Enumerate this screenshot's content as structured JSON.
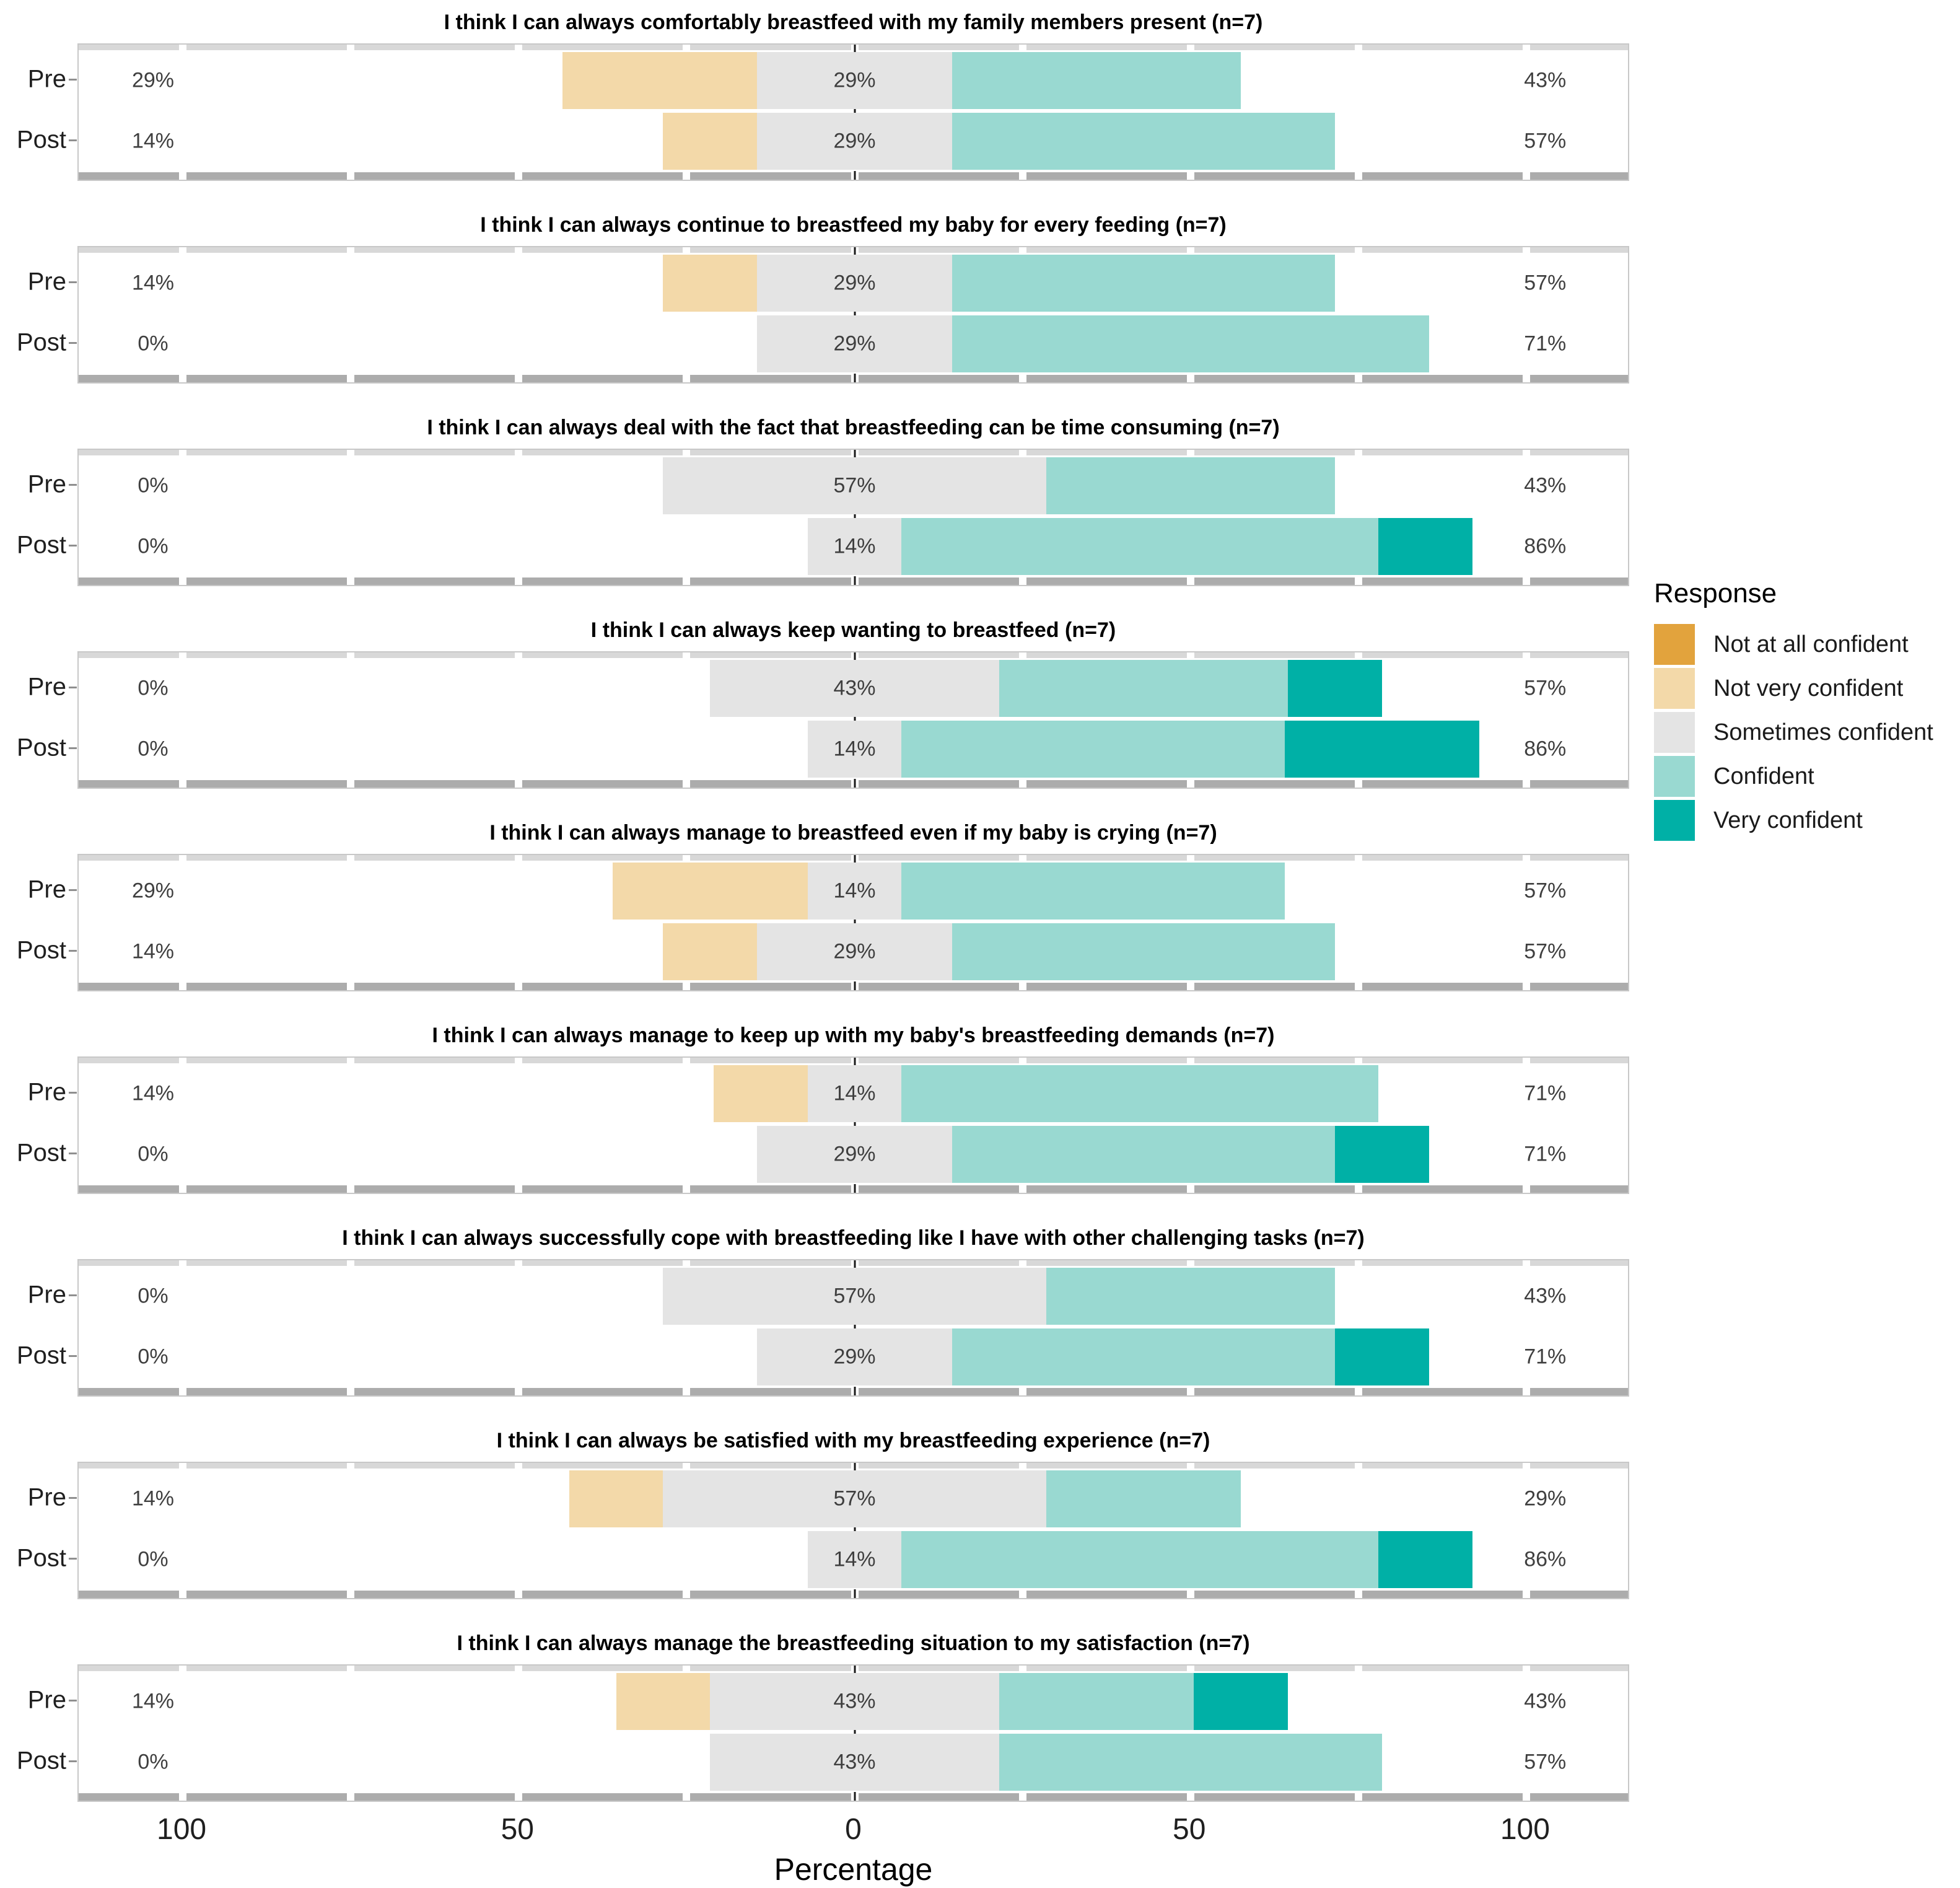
{
  "chart_data": {
    "type": "bar",
    "subtype": "diverging-stacked-likert",
    "xlabel": "Percentage",
    "x_ticks": [
      {
        "label": "100",
        "value": -100
      },
      {
        "label": "50",
        "value": -50
      },
      {
        "label": "0",
        "value": 0
      },
      {
        "label": "50",
        "value": 50
      },
      {
        "label": "100",
        "value": 100
      }
    ],
    "axis_range": [
      -115.5,
      115.5
    ],
    "grid_step": 25,
    "categories": [
      "Pre",
      "Post"
    ],
    "legend": {
      "title": "Response",
      "position": "right",
      "items": [
        {
          "id": "not_at_all",
          "label": "Not at all confident",
          "color": "#e2a33d"
        },
        {
          "id": "not_very",
          "label": "Not very confident",
          "color": "#f3d9a9"
        },
        {
          "id": "sometimes",
          "label": "Sometimes confident",
          "color": "#e4e4e4"
        },
        {
          "id": "confident",
          "label": "Confident",
          "color": "#99d9d1"
        },
        {
          "id": "very",
          "label": "Very confident",
          "color": "#00b0a6"
        }
      ]
    },
    "panels": [
      {
        "title": "I think I can always comfortably breastfeed with my family members present (n=7)",
        "rows": [
          {
            "label": "Pre",
            "values": {
              "not_at_all": 0,
              "not_very": 29,
              "sometimes": 29,
              "confident": 43,
              "very": 0
            },
            "labels": {
              "left": "29%",
              "center": "29%",
              "right": "43%"
            }
          },
          {
            "label": "Post",
            "values": {
              "not_at_all": 0,
              "not_very": 14,
              "sometimes": 29,
              "confident": 57,
              "very": 0
            },
            "labels": {
              "left": "14%",
              "center": "29%",
              "right": "57%"
            }
          }
        ]
      },
      {
        "title": "I think I can always continue to breastfeed my baby for every feeding (n=7)",
        "rows": [
          {
            "label": "Pre",
            "values": {
              "not_at_all": 0,
              "not_very": 14,
              "sometimes": 29,
              "confident": 57,
              "very": 0
            },
            "labels": {
              "left": "14%",
              "center": "29%",
              "right": "57%"
            }
          },
          {
            "label": "Post",
            "values": {
              "not_at_all": 0,
              "not_very": 0,
              "sometimes": 29,
              "confident": 71,
              "very": 0
            },
            "labels": {
              "left": "0%",
              "center": "29%",
              "right": "71%"
            }
          }
        ]
      },
      {
        "title": "I think I can always deal with the fact that breastfeeding can be time consuming (n=7)",
        "rows": [
          {
            "label": "Pre",
            "values": {
              "not_at_all": 0,
              "not_very": 0,
              "sometimes": 57,
              "confident": 43,
              "very": 0
            },
            "labels": {
              "left": "0%",
              "center": "57%",
              "right": "43%"
            }
          },
          {
            "label": "Post",
            "values": {
              "not_at_all": 0,
              "not_very": 0,
              "sometimes": 14,
              "confident": 71,
              "very": 14
            },
            "labels": {
              "left": "0%",
              "center": "14%",
              "right": "86%"
            }
          }
        ]
      },
      {
        "title": "I think I can always keep wanting to breastfeed (n=7)",
        "rows": [
          {
            "label": "Pre",
            "values": {
              "not_at_all": 0,
              "not_very": 0,
              "sometimes": 43,
              "confident": 43,
              "very": 14
            },
            "labels": {
              "left": "0%",
              "center": "43%",
              "right": "57%"
            }
          },
          {
            "label": "Post",
            "values": {
              "not_at_all": 0,
              "not_very": 0,
              "sometimes": 14,
              "confident": 57,
              "very": 29
            },
            "labels": {
              "left": "0%",
              "center": "14%",
              "right": "86%"
            }
          }
        ]
      },
      {
        "title": "I think I can always manage to breastfeed even if my baby is crying (n=7)",
        "rows": [
          {
            "label": "Pre",
            "values": {
              "not_at_all": 0,
              "not_very": 29,
              "sometimes": 14,
              "confident": 57,
              "very": 0
            },
            "labels": {
              "left": "29%",
              "center": "14%",
              "right": "57%"
            }
          },
          {
            "label": "Post",
            "values": {
              "not_at_all": 0,
              "not_very": 14,
              "sometimes": 29,
              "confident": 57,
              "very": 0
            },
            "labels": {
              "left": "14%",
              "center": "29%",
              "right": "57%"
            }
          }
        ]
      },
      {
        "title": "I think I can always manage to keep up with my baby's breastfeeding demands (n=7)",
        "rows": [
          {
            "label": "Pre",
            "values": {
              "not_at_all": 0,
              "not_very": 14,
              "sometimes": 14,
              "confident": 71,
              "very": 0
            },
            "labels": {
              "left": "14%",
              "center": "14%",
              "right": "71%"
            }
          },
          {
            "label": "Post",
            "values": {
              "not_at_all": 0,
              "not_very": 0,
              "sometimes": 29,
              "confident": 57,
              "very": 14
            },
            "labels": {
              "left": "0%",
              "center": "29%",
              "right": "71%"
            }
          }
        ]
      },
      {
        "title": "I think I can always successfully cope with breastfeeding like I have with other challenging tasks (n=7)",
        "rows": [
          {
            "label": "Pre",
            "values": {
              "not_at_all": 0,
              "not_very": 0,
              "sometimes": 57,
              "confident": 43,
              "very": 0
            },
            "labels": {
              "left": "0%",
              "center": "57%",
              "right": "43%"
            }
          },
          {
            "label": "Post",
            "values": {
              "not_at_all": 0,
              "not_very": 0,
              "sometimes": 29,
              "confident": 57,
              "very": 14
            },
            "labels": {
              "left": "0%",
              "center": "29%",
              "right": "71%"
            }
          }
        ]
      },
      {
        "title": "I think I can always be satisfied with my breastfeeding experience (n=7)",
        "rows": [
          {
            "label": "Pre",
            "values": {
              "not_at_all": 0,
              "not_very": 14,
              "sometimes": 57,
              "confident": 29,
              "very": 0
            },
            "labels": {
              "left": "14%",
              "center": "57%",
              "right": "29%"
            }
          },
          {
            "label": "Post",
            "values": {
              "not_at_all": 0,
              "not_very": 0,
              "sometimes": 14,
              "confident": 71,
              "very": 14
            },
            "labels": {
              "left": "0%",
              "center": "14%",
              "right": "86%"
            }
          }
        ]
      },
      {
        "title": "I think I can always manage the breastfeeding situation to my satisfaction (n=7)",
        "rows": [
          {
            "label": "Pre",
            "values": {
              "not_at_all": 0,
              "not_very": 14,
              "sometimes": 43,
              "confident": 29,
              "very": 14
            },
            "labels": {
              "left": "14%",
              "center": "43%",
              "right": "43%"
            }
          },
          {
            "label": "Post",
            "values": {
              "not_at_all": 0,
              "not_very": 0,
              "sometimes": 43,
              "confident": 57,
              "very": 0
            },
            "labels": {
              "left": "0%",
              "center": "43%",
              "right": "57%"
            }
          }
        ]
      }
    ]
  }
}
